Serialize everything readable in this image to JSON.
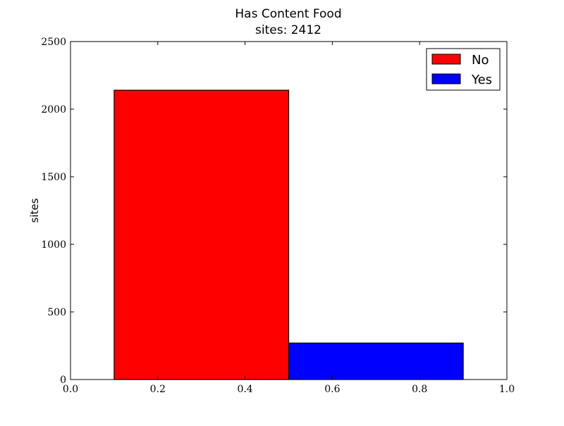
{
  "chart_data": {
    "type": "bar",
    "title": "Has Content Food",
    "subtitle": "sites: 2412",
    "xlabel": "",
    "ylabel": "sites",
    "xlim": [
      0.0,
      1.0
    ],
    "ylim": [
      0,
      2500
    ],
    "xticks": [
      "0.0",
      "0.2",
      "0.4",
      "0.6",
      "0.8",
      "1.0"
    ],
    "yticks": [
      "0",
      "500",
      "1000",
      "1500",
      "2000",
      "2500"
    ],
    "grid": false,
    "legend_position": "top-right",
    "series": [
      {
        "name": "No",
        "color": "#ff0000",
        "x_start": 0.1,
        "x_end": 0.5,
        "value": 2140
      },
      {
        "name": "Yes",
        "color": "#0000ff",
        "x_start": 0.5,
        "x_end": 0.9,
        "value": 270
      }
    ]
  }
}
